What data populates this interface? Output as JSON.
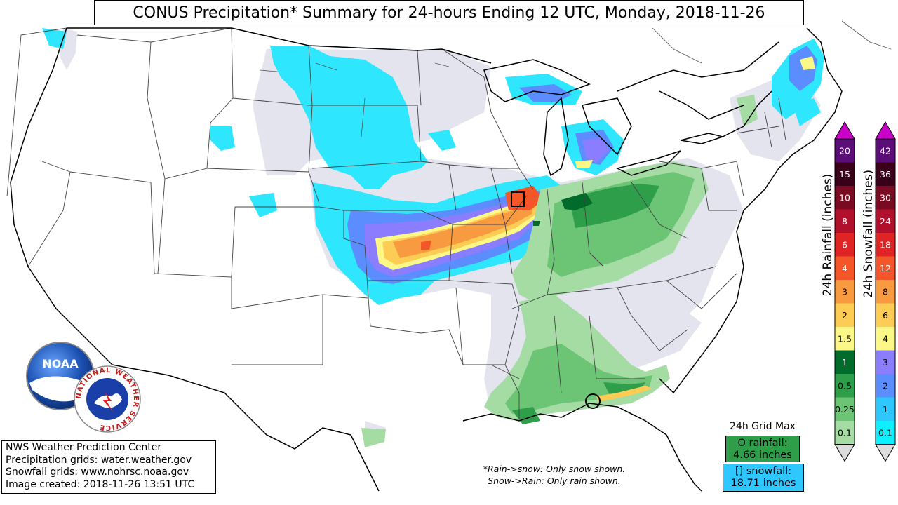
{
  "title": "CONUS Precipitation* Summary for 24-hours Ending 12 UTC, Monday, 2018-11-26",
  "info_lines": [
    "NWS Weather Prediction Center",
    "Precipitation grids: water.weather.gov",
    "Snowfall grids: www.nohrsc.noaa.gov",
    "Image created: 2018-11-26 13:51 UTC"
  ],
  "notes": [
    "*Rain->snow: Only snow shown.",
    "Snow->Rain: Only rain shown."
  ],
  "grid_max": {
    "title": "24h Grid Max",
    "rain_label": "O rainfall:",
    "rain_value": "4.66 inches",
    "snow_label": "[] snowfall:",
    "snow_value": "18.71 inches",
    "rain_color": "#2e9e4a",
    "snow_color": "#2fc7ff"
  },
  "rain_scale": {
    "label": "24h Rainfall (inches)",
    "levels": [
      {
        "value": "20",
        "color": "#5c0e78"
      },
      {
        "value": "15",
        "color": "#3a001a"
      },
      {
        "value": "10",
        "color": "#7a0a22"
      },
      {
        "value": "8",
        "color": "#b0102c"
      },
      {
        "value": "6",
        "color": "#de2424"
      },
      {
        "value": "4",
        "color": "#f4562a"
      },
      {
        "value": "3",
        "color": "#f89a40"
      },
      {
        "value": "2",
        "color": "#fccc54"
      },
      {
        "value": "1.5",
        "color": "#fcf888"
      },
      {
        "value": "1",
        "color": "#006b2b"
      },
      {
        "value": "0.5",
        "color": "#2e9e4a"
      },
      {
        "value": "0.25",
        "color": "#6cc475"
      },
      {
        "value": "0.1",
        "color": "#a4dca4"
      }
    ],
    "under_color": "#dcdcdc",
    "over_color": "#c800c8"
  },
  "snow_scale": {
    "label": "24h Snowfall (inches)",
    "levels": [
      {
        "value": "42",
        "color": "#5c0e78"
      },
      {
        "value": "36",
        "color": "#3a001a"
      },
      {
        "value": "30",
        "color": "#7a0a22"
      },
      {
        "value": "24",
        "color": "#b0102c"
      },
      {
        "value": "18",
        "color": "#de2424"
      },
      {
        "value": "12",
        "color": "#f4562a"
      },
      {
        "value": "8",
        "color": "#f89a40"
      },
      {
        "value": "6",
        "color": "#fccc54"
      },
      {
        "value": "4",
        "color": "#fcf888"
      },
      {
        "value": "3",
        "color": "#8a7dff"
      },
      {
        "value": "2",
        "color": "#5b8dff"
      },
      {
        "value": "1",
        "color": "#2fc7ff"
      },
      {
        "value": "0.1",
        "color": "#0ef0ff"
      }
    ],
    "under_color": "#dcdcdc",
    "over_color": "#c800c8"
  },
  "logos": {
    "noaa_text": "NOAA",
    "nws_ring_text": "NATIONAL WEATHER SERVICE"
  },
  "colors": {
    "light_gray_precip": "#e4e4ee",
    "cyan_snow": "#2fe6ff",
    "land": "#ffffff"
  }
}
